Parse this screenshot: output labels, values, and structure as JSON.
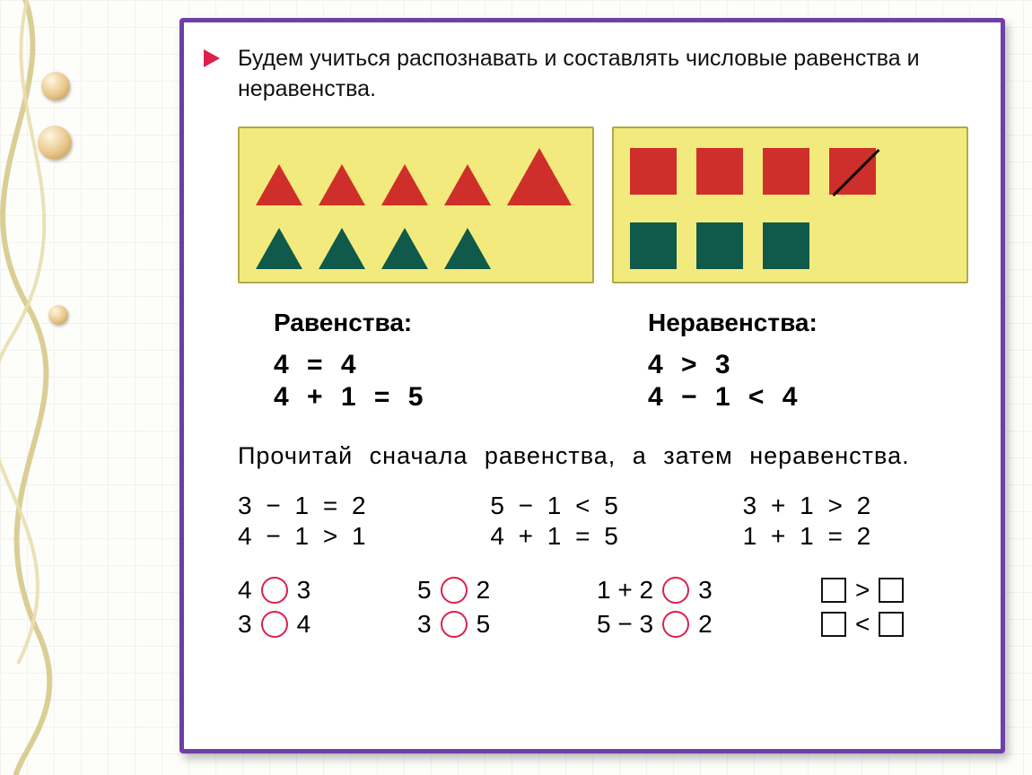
{
  "colors": {
    "border": "#6e3fa5",
    "bullet": "#d9214b",
    "panel_bg": "#f3ea7e",
    "panel_border": "#b2a84b",
    "shape_red": "#cf2f2a",
    "shape_green": "#0f5a4a",
    "circle_outline": "#d9214b",
    "text": "#111111"
  },
  "intro": "Будем учиться распознавать и составлять числовые равенства и неравенства.",
  "panel_left": {
    "row1": {
      "count": 5,
      "color": "shape_red",
      "last_big": true,
      "shape": "triangle"
    },
    "row2": {
      "count": 4,
      "color": "shape_green",
      "shape": "triangle"
    }
  },
  "panel_right": {
    "row1": {
      "count": 4,
      "color": "shape_red",
      "shape": "square",
      "last_struck": true
    },
    "row2": {
      "count": 3,
      "color": "shape_green",
      "shape": "square"
    }
  },
  "equalities": {
    "title": "Равенства:",
    "lines": [
      "4 = 4",
      "4 + 1 = 5"
    ]
  },
  "inequalities": {
    "title": "Неравенства:",
    "lines": [
      "4 > 3",
      "4 − 1 < 4"
    ]
  },
  "instruction": "Прочитай сначала равенства, а затем неравенства.",
  "examples": [
    [
      "3 − 1 = 2",
      "5 − 1 < 5",
      "3 + 1 > 2"
    ],
    [
      "4 − 1 > 1",
      "4 + 1 = 5",
      "1 + 1 = 2"
    ]
  ],
  "fill": {
    "rows": [
      {
        "a": "4",
        "b": "3",
        "c": "5",
        "d": "2",
        "expr": "1 + 2",
        "e": "3",
        "rel": ">"
      },
      {
        "a": "3",
        "b": "4",
        "c": "3",
        "d": "5",
        "expr": "5 − 3",
        "e": "2",
        "rel": "<"
      }
    ]
  }
}
